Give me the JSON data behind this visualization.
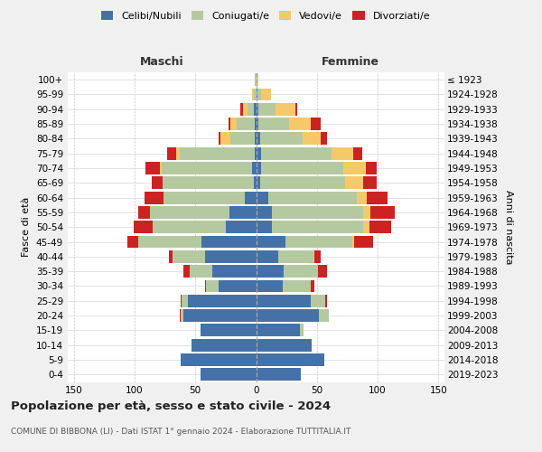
{
  "age_groups": [
    "0-4",
    "5-9",
    "10-14",
    "15-19",
    "20-24",
    "25-29",
    "30-34",
    "35-39",
    "40-44",
    "45-49",
    "50-54",
    "55-59",
    "60-64",
    "65-69",
    "70-74",
    "75-79",
    "80-84",
    "85-89",
    "90-94",
    "95-99",
    "100+"
  ],
  "birth_years": [
    "2019-2023",
    "2014-2018",
    "2009-2013",
    "2004-2008",
    "1999-2003",
    "1994-1998",
    "1989-1993",
    "1984-1988",
    "1979-1983",
    "1974-1978",
    "1969-1973",
    "1964-1968",
    "1959-1963",
    "1954-1958",
    "1949-1953",
    "1944-1948",
    "1939-1943",
    "1934-1938",
    "1929-1933",
    "1924-1928",
    "≤ 1923"
  ],
  "male_celibe": [
    46,
    62,
    53,
    46,
    60,
    56,
    31,
    36,
    42,
    45,
    25,
    22,
    9,
    2,
    3,
    1,
    1,
    1,
    2,
    0,
    0
  ],
  "male_coniugato": [
    0,
    0,
    0,
    0,
    2,
    5,
    10,
    19,
    27,
    52,
    60,
    65,
    67,
    75,
    75,
    62,
    20,
    15,
    5,
    2,
    1
  ],
  "male_vedovo": [
    0,
    0,
    0,
    0,
    0,
    0,
    0,
    0,
    0,
    0,
    0,
    0,
    0,
    0,
    1,
    3,
    8,
    5,
    4,
    1,
    0
  ],
  "male_divorziato": [
    0,
    0,
    0,
    0,
    1,
    1,
    1,
    5,
    3,
    9,
    16,
    10,
    16,
    9,
    12,
    7,
    2,
    2,
    2,
    0,
    0
  ],
  "fem_nubile": [
    37,
    56,
    46,
    36,
    52,
    45,
    22,
    23,
    18,
    24,
    13,
    13,
    10,
    3,
    4,
    4,
    3,
    2,
    2,
    1,
    0
  ],
  "fem_coniugata": [
    0,
    0,
    0,
    3,
    8,
    12,
    23,
    28,
    29,
    55,
    75,
    75,
    73,
    70,
    68,
    58,
    35,
    25,
    14,
    3,
    0
  ],
  "fem_vedova": [
    0,
    0,
    0,
    0,
    0,
    0,
    0,
    0,
    1,
    2,
    5,
    6,
    8,
    15,
    18,
    18,
    15,
    18,
    16,
    8,
    2
  ],
  "fem_divorziata": [
    0,
    0,
    0,
    0,
    0,
    1,
    3,
    7,
    5,
    15,
    18,
    20,
    17,
    11,
    9,
    7,
    5,
    8,
    2,
    0,
    0
  ],
  "color_celibe": "#4472a8",
  "color_coniugato": "#b5c9a0",
  "color_vedovo": "#f5c96a",
  "color_divorziato": "#cc2222",
  "title": "Popolazione per età, sesso e stato civile - 2024",
  "subtitle": "COMUNE DI BIBBONA (LI) - Dati ISTAT 1° gennaio 2024 - Elaborazione TUTTITALIA.IT",
  "xlim": 155,
  "bg_color": "#f0f0f0",
  "plot_bg": "#ffffff"
}
